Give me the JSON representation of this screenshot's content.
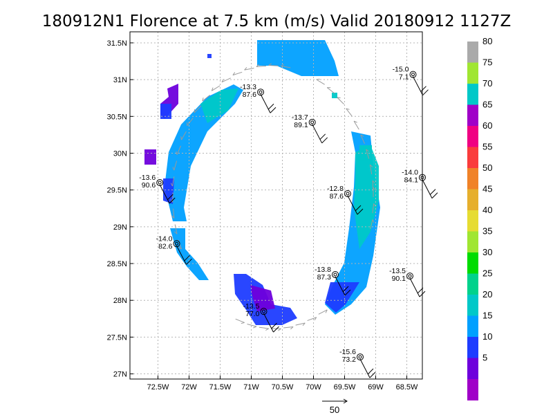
{
  "chart_data": {
    "type": "scatter",
    "title": "180912N1 Florence at 7.5 km (m/s) Valid 20180912 1127Z",
    "x_ticks": [
      "72.5W",
      "72W",
      "71.5W",
      "71W",
      "70.5W",
      "70W",
      "69.5W",
      "69W",
      "68.5W"
    ],
    "y_ticks": [
      "31.5N",
      "31N",
      "30.5N",
      "30N",
      "29.5N",
      "29N",
      "28.5N",
      "28N",
      "27.5N",
      "27N"
    ],
    "xlim": [
      -72.95,
      -68.25
    ],
    "ylim": [
      26.93,
      31.65
    ],
    "grid": true,
    "colorbar": {
      "labels": [
        "5",
        "10",
        "15",
        "20",
        "25",
        "30",
        "35",
        "40",
        "45",
        "50",
        "55",
        "60",
        "65",
        "70",
        "75",
        "80"
      ],
      "colors": [
        "#a000c8",
        "#6e00dc",
        "#1e3cff",
        "#00a0ff",
        "#00c8c8",
        "#00d28c",
        "#00dc00",
        "#a0e632",
        "#e6dc32",
        "#e6af2d",
        "#f08228",
        "#fa3c3c",
        "#f00082",
        "#a000c8",
        "#00c8c8",
        "#a0e632",
        "#aaaaaa"
      ]
    },
    "stations": [
      {
        "lon": -70.85,
        "lat": 30.83,
        "temp": "-13.3",
        "pres": "87.6"
      },
      {
        "lon": -70.02,
        "lat": 30.42,
        "temp": "-13.7",
        "pres": "89.1"
      },
      {
        "lon": -68.4,
        "lat": 31.07,
        "temp": "-15.0",
        "pres": "7.1"
      },
      {
        "lon": -72.47,
        "lat": 29.6,
        "temp": "-13.6",
        "pres": "90.6"
      },
      {
        "lon": -69.45,
        "lat": 29.45,
        "temp": "-12.8",
        "pres": "87.6"
      },
      {
        "lon": -68.25,
        "lat": 29.67,
        "temp": "-14.0",
        "pres": "84.1"
      },
      {
        "lon": -72.2,
        "lat": 28.77,
        "temp": "-14.0",
        "pres": "82.6"
      },
      {
        "lon": -69.65,
        "lat": 28.35,
        "temp": "-13.8",
        "pres": "87.3"
      },
      {
        "lon": -68.45,
        "lat": 28.33,
        "temp": "-13.5",
        "pres": "90.1"
      },
      {
        "lon": -70.8,
        "lat": 27.85,
        "temp": "-13.5",
        "pres": "77.0"
      },
      {
        "lon": -69.25,
        "lat": 27.23,
        "temp": "-15.6",
        "pres": "73.2"
      }
    ],
    "reference_vector_label": "50"
  }
}
